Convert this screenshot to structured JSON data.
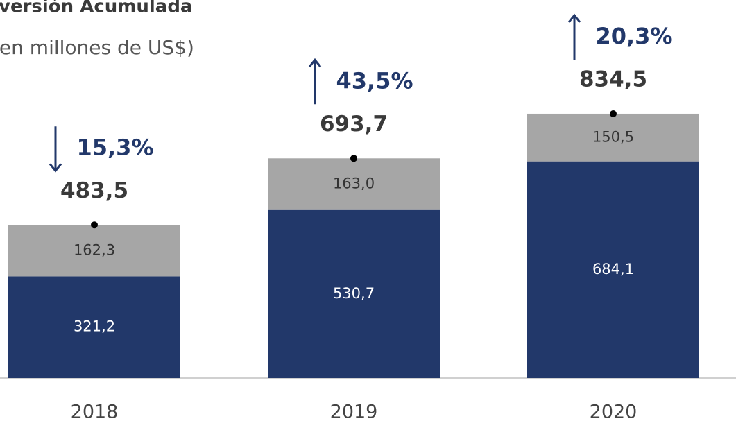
{
  "chart_data": {
    "type": "stacked_bar",
    "title": "versión Acumulada",
    "subtitle": "(en millones de US$)",
    "categories": [
      "2018",
      "2019",
      "2020"
    ],
    "series": [
      {
        "color": "#22386a",
        "values": [
          321.2,
          530.7,
          684.1
        ],
        "value_labels": [
          "321,2",
          "530,7",
          "684,1"
        ]
      },
      {
        "color": "#a6a6a6",
        "values": [
          162.3,
          163.0,
          150.5
        ],
        "value_labels": [
          "162,3",
          "163,0",
          "150,5"
        ]
      }
    ],
    "totals": [
      483.5,
      693.7,
      834.5
    ],
    "total_labels": [
      "483,5",
      "693,7",
      "834,5"
    ],
    "changes": [
      -15.3,
      43.5,
      20.3
    ],
    "change_labels": [
      "15,3%",
      "43,5%",
      "20,3%"
    ]
  }
}
